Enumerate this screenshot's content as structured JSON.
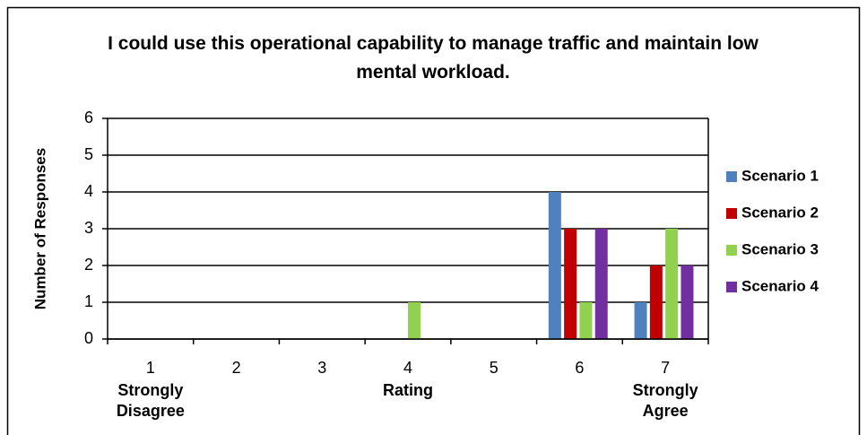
{
  "chart_data": {
    "type": "bar",
    "title": "I could use this operational capability to manage traffic and maintain low mental workload.",
    "xlabel": "Rating",
    "ylabel": "Number of Responses",
    "annotations": [
      "Strongly Disagree",
      "Strongly Agree"
    ],
    "categories": [
      "1",
      "2",
      "3",
      "4",
      "5",
      "6",
      "7"
    ],
    "series": [
      {
        "name": "Scenario 1",
        "color": "#4f81bd",
        "values": [
          0,
          0,
          0,
          0,
          0,
          4,
          1
        ]
      },
      {
        "name": "Scenario 2",
        "color": "#c00000",
        "values": [
          0,
          0,
          0,
          0,
          0,
          3,
          2
        ]
      },
      {
        "name": "Scenario 3",
        "color": "#92d050",
        "values": [
          0,
          0,
          0,
          1,
          0,
          1,
          3
        ]
      },
      {
        "name": "Scenario 4",
        "color": "#7030a0",
        "values": [
          0,
          0,
          0,
          0,
          0,
          3,
          2
        ]
      }
    ],
    "ylim": [
      0,
      6
    ],
    "yticks": [
      0,
      1,
      2,
      3,
      4,
      5,
      6
    ],
    "grid": true,
    "legend": "right"
  }
}
